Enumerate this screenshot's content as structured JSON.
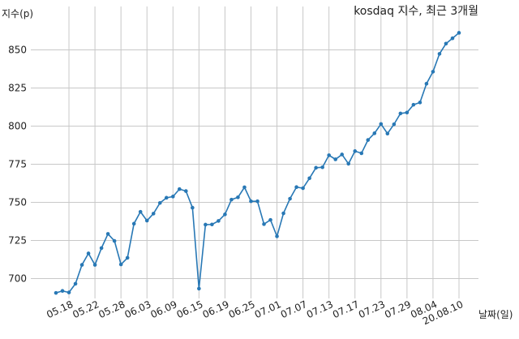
{
  "chart_data": {
    "type": "line",
    "title": "kosdaq 지수, 최근 3개월",
    "ylabel": "지수(p)",
    "xlabel": "날짜(일)",
    "ylim": [
      685,
      865
    ],
    "yticks": [
      700,
      725,
      750,
      775,
      800,
      825,
      850
    ],
    "grid": true,
    "xtick_labels": [
      "05.18",
      "05.22",
      "05.28",
      "06.03",
      "06.09",
      "06.15",
      "06.19",
      "06.25",
      "07.01",
      "07.07",
      "07.13",
      "07.17",
      "07.23",
      "07.29",
      "08.04",
      "20.08.10"
    ],
    "series": [
      {
        "color": "#2878b5",
        "values": [
          690.6,
          691.9,
          690.9,
          696.6,
          709.0,
          716.5,
          709.0,
          720.0,
          729.3,
          724.7,
          709.3,
          713.6,
          736.0,
          743.8,
          738.0,
          742.6,
          749.6,
          753.0,
          753.8,
          758.7,
          757.4,
          746.5,
          693.4,
          735.4,
          735.5,
          737.8,
          742.1,
          751.8,
          753.3,
          759.9,
          750.7,
          750.7,
          735.7,
          738.5,
          727.7,
          742.8,
          752.4,
          760.0,
          759.3,
          765.8,
          772.7,
          773.0,
          780.9,
          778.2,
          781.4,
          775.3,
          783.6,
          782.2,
          790.9,
          795.3,
          801.4,
          795.1,
          801.2,
          808.3,
          808.9,
          814.0,
          815.5,
          827.8,
          835.7,
          847.4,
          854.1,
          857.6,
          861.2
        ]
      }
    ]
  }
}
